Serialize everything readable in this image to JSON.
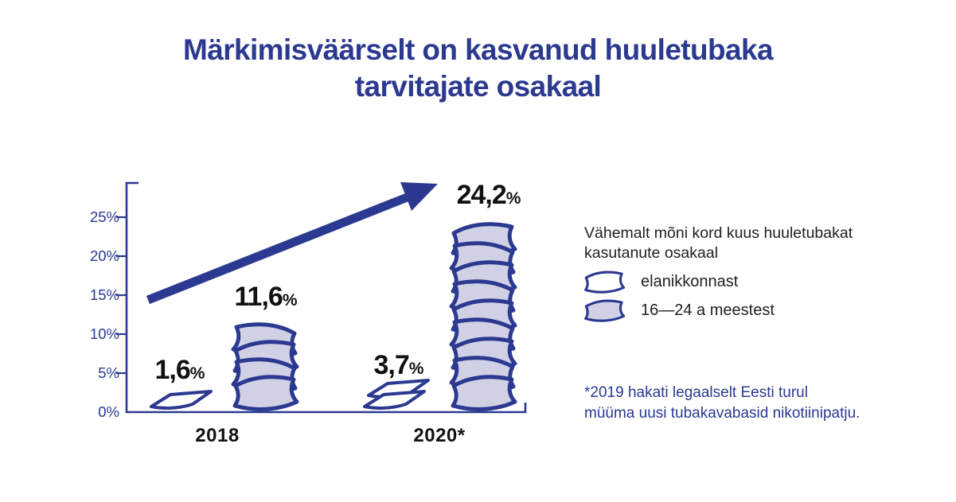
{
  "title": {
    "line1": "Märkimisväärselt on kasvanud huuletubaka",
    "line2": "tarvitajate osakaal"
  },
  "colors": {
    "navy": "#2b3990",
    "lavender": "#d1d1e6",
    "white": "#ffffff",
    "text_black": "#1a1a1a"
  },
  "chart_data": {
    "type": "bar",
    "subtype": "pictogram-pouch-stacks",
    "title": "Märkimisväärselt on kasvanud huuletubaka tarvitajate osakaal",
    "categories": [
      "2018",
      "2020*"
    ],
    "series": [
      {
        "name": "elanikkonnast",
        "values": [
          1.6,
          3.7
        ],
        "icon_counts": [
          1,
          2
        ],
        "fill": "#ffffff"
      },
      {
        "name": "16—24 a meestest",
        "values": [
          11.6,
          24.2
        ],
        "icon_counts": [
          4,
          9
        ],
        "fill": "#d1d1e6"
      }
    ],
    "value_labels": [
      [
        "1,6",
        "3,7"
      ],
      [
        "11,6",
        "24,2"
      ]
    ],
    "pct_symbol": "%",
    "xlabel": "",
    "ylabel": "",
    "y_ticks": [
      "0%",
      "5%",
      "10%",
      "15%",
      "20%",
      "25%"
    ],
    "ylim": [
      0,
      29
    ],
    "grid": false,
    "legend_position": "right",
    "annotation": "thick upward navy arrow from 15% level toward 24,2% label"
  },
  "legend": {
    "title": "Vähemalt mõni kord kuus huuletubakat kasutanute osakaal",
    "items": [
      {
        "label": "elanikkonnast",
        "swatch": "white-pouch"
      },
      {
        "label": "16—24 a meestest",
        "swatch": "lavender-pouch"
      }
    ]
  },
  "footnote": {
    "line1": "*2019 hakati legaalselt Eesti turul",
    "line2": "müüma uusi tubakavabasid nikotiinipatju."
  }
}
